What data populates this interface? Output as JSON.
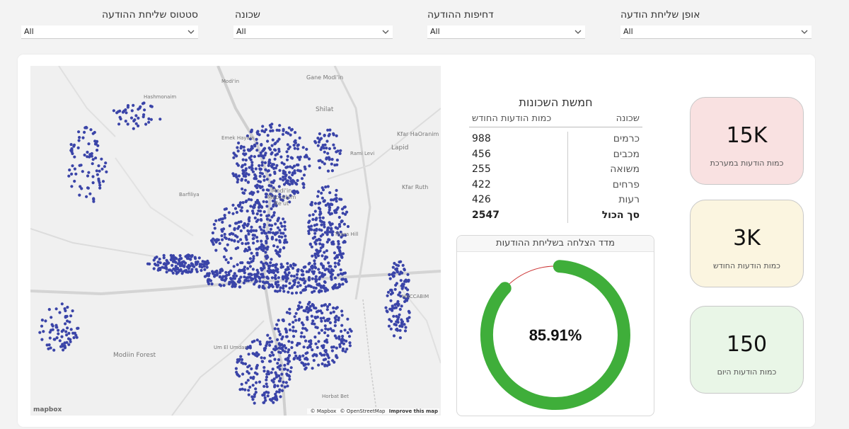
{
  "filters": [
    {
      "label": "סטטוס שליחת ההודעה",
      "value": "All"
    },
    {
      "label": "שכונה",
      "value": "All"
    },
    {
      "label": "דחיפות ההודעה",
      "value": "All"
    },
    {
      "label": "אופן שליחת הודעה",
      "value": "All"
    }
  ],
  "map": {
    "places": [
      {
        "text": "Gane Modi'in"
      },
      {
        "text": "Shilat"
      },
      {
        "text": "Kfar HaOranim"
      },
      {
        "text": "Lapid"
      },
      {
        "text": "Rami Levi"
      },
      {
        "text": "Kfar Ruth"
      },
      {
        "text": "Modi'in Maccabim Re'ut"
      },
      {
        "text": "Barfiliya"
      },
      {
        "text": "Emek Hayala"
      },
      {
        "text": "Titora Hill"
      },
      {
        "text": "MACCABIM"
      },
      {
        "text": "Modiin Forest"
      },
      {
        "text": "Um El Umdan"
      },
      {
        "text": "Horbat Bet"
      },
      {
        "text": "Modi'in"
      },
      {
        "text": "Hashmonaim"
      }
    ],
    "attribution": [
      "© Mapbox",
      "© OpenStreetMap",
      "Improve this map"
    ],
    "logo": "mapbox",
    "dot_color": "#3a44a8"
  },
  "table": {
    "title": "חמשת השכונות",
    "headers": [
      "שכונה",
      "כמות הודעות החודש"
    ],
    "rows": [
      {
        "name": "כרמים",
        "count": "988"
      },
      {
        "name": "מכבים",
        "count": "456"
      },
      {
        "name": "משואה",
        "count": "255"
      },
      {
        "name": "פרחים",
        "count": "422"
      },
      {
        "name": "רעות",
        "count": "426"
      }
    ],
    "total": {
      "name": "סך הכול",
      "count": "2547"
    }
  },
  "gauge": {
    "title": "מדד הצלחה בשליחת ההודעות",
    "value_label": "85.91%",
    "percent": 85.91,
    "fill_color": "#3fae3a",
    "track_color": "#cc3333"
  },
  "kpis": [
    {
      "value": "15K",
      "label": "כמות הודעות במערכת",
      "bg": "#f9e1e1"
    },
    {
      "value": "3K",
      "label": "כמות הודעות החודש",
      "bg": "#fbf5e0"
    },
    {
      "value": "150",
      "label": "כמות הודעות היום",
      "bg": "#e9f6e7"
    }
  ]
}
